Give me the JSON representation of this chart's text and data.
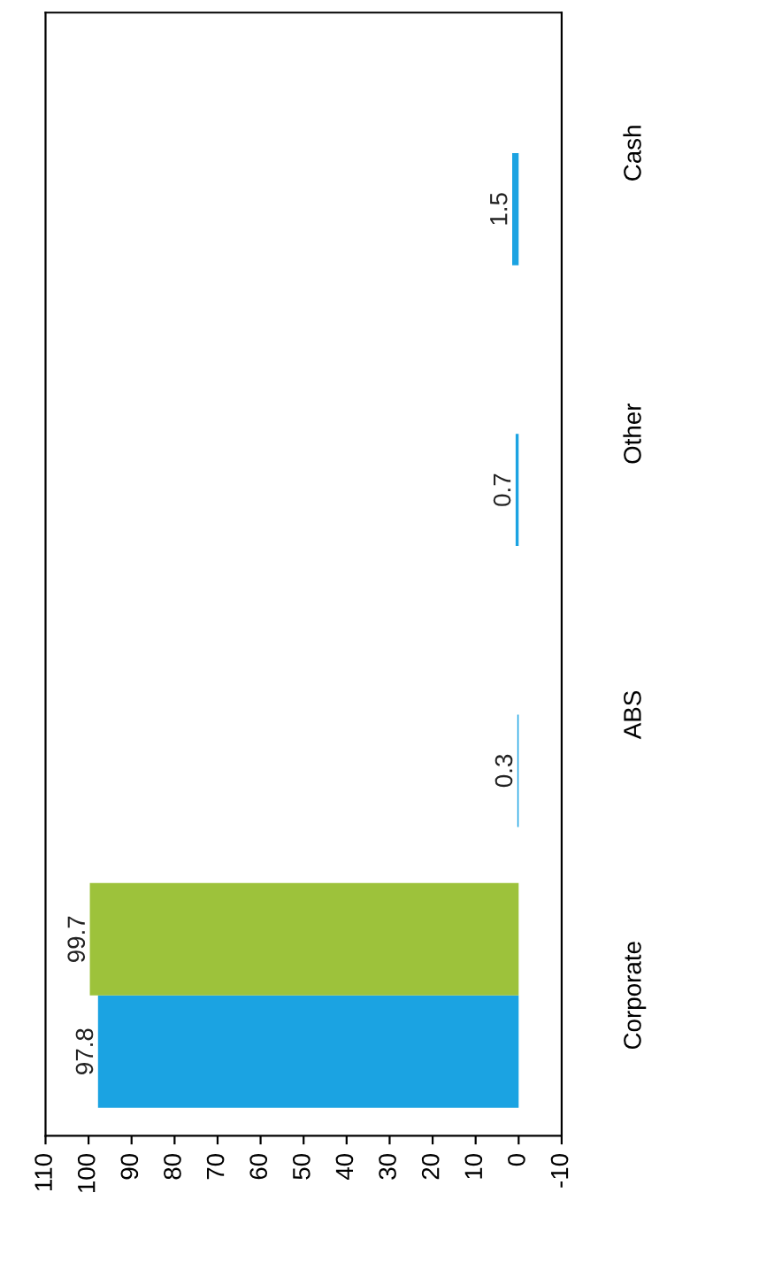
{
  "chart_data": {
    "type": "bar",
    "orientation": "horizontal",
    "categories": [
      "Cash",
      "Other",
      "ABS",
      "Corporate"
    ],
    "series": [
      {
        "color": "#1ba3e2",
        "values": [
          1.5,
          0.7,
          0.3,
          97.8
        ]
      },
      {
        "color": "#9dc23b",
        "values": [
          null,
          null,
          null,
          99.7
        ]
      }
    ],
    "xlim": [
      110,
      -10
    ],
    "xticks": [
      110,
      100,
      90,
      80,
      70,
      60,
      50,
      40,
      30,
      20,
      10,
      0,
      -10
    ],
    "data_labels": true,
    "grid": false,
    "legend": false
  }
}
